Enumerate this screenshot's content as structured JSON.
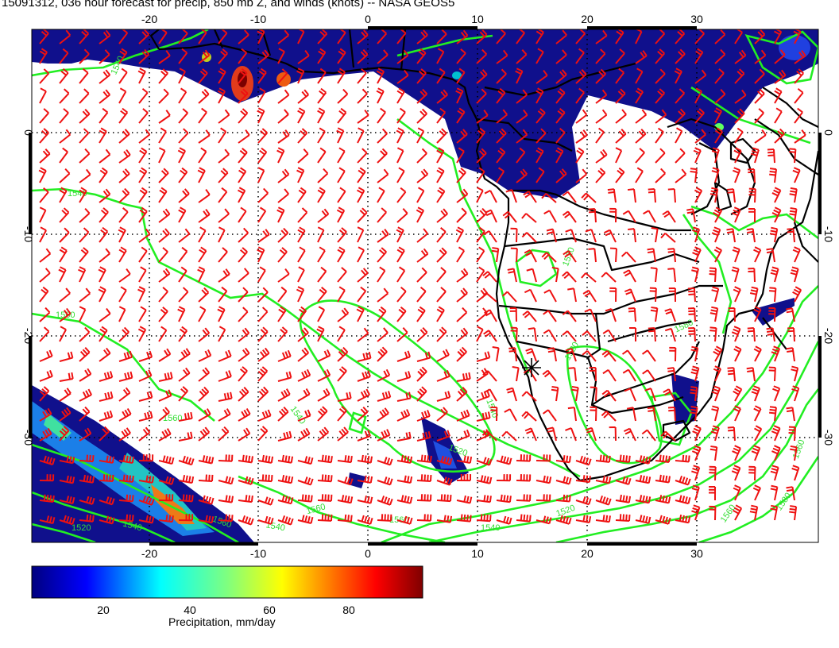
{
  "title": "15091312, 036 hour forecast for precip, 850 mb Z, and winds (knots) -- NASA GEOS5",
  "map": {
    "lon_range": [
      -30,
      42
    ],
    "lat_range": [
      -39,
      11
    ],
    "lon_ticks": [
      "-20",
      "-10",
      "0",
      "10",
      "20",
      "30"
    ],
    "lat_ticks": [
      "0",
      "-10",
      "-20",
      "-30"
    ],
    "contour_labels": [
      "1540",
      "1540",
      "1560",
      "1560",
      "1540",
      "1520",
      "1560",
      "1580",
      "1520",
      "1540",
      "1520",
      "1540",
      "1520",
      "1560",
      "1540",
      "1560",
      "1560",
      "1580",
      "1540",
      "1520",
      "1560"
    ],
    "colors": {
      "contour": "#22ee22",
      "wind_barb": "#ee1111",
      "coastline": "#000000",
      "precip_low": "#10108c"
    }
  },
  "colorbar": {
    "ticks": [
      "20",
      "40",
      "60",
      "80"
    ],
    "range": [
      0,
      100
    ],
    "label": "Precipitation, mm/day",
    "colormap": [
      "#00007f",
      "#0000ff",
      "#00ffff",
      "#7fff7f",
      "#ffff00",
      "#ff7f00",
      "#ff0000",
      "#7f0000"
    ]
  }
}
